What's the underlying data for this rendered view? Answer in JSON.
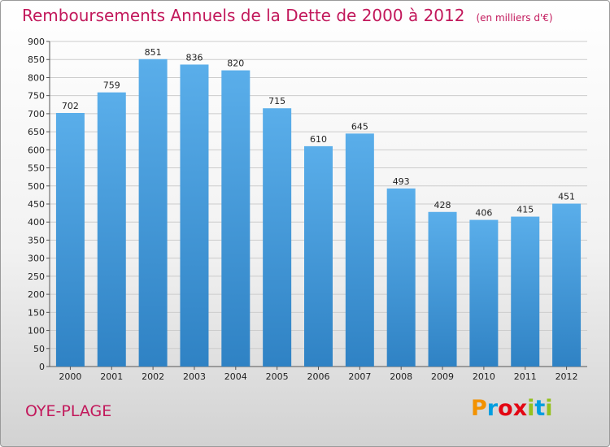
{
  "header": {
    "title": "Remboursements Annuels de la Dette de 2000 à 2012",
    "unit": "(en milliers d'€)"
  },
  "footer": {
    "commune": "OYE-PLAGE",
    "logo": {
      "letters": [
        "P",
        "r",
        "o",
        "x",
        "i",
        "t",
        "i"
      ],
      "colors": [
        "#f39200",
        "#009ee0",
        "#e30613",
        "#e30613",
        "#95c11f",
        "#009ee0",
        "#95c11f"
      ]
    }
  },
  "chart_data": {
    "type": "bar",
    "title": "Remboursements Annuels de la Dette de 2000 à 2012",
    "subtitle": "(en milliers d'€)",
    "xlabel": "",
    "ylabel": "",
    "categories": [
      "2000",
      "2001",
      "2002",
      "2003",
      "2004",
      "2005",
      "2006",
      "2007",
      "2008",
      "2009",
      "2010",
      "2011",
      "2012"
    ],
    "values": [
      702,
      759,
      851,
      836,
      820,
      715,
      610,
      645,
      493,
      428,
      406,
      415,
      451
    ],
    "ylim": [
      0,
      900
    ],
    "yticks": [
      0,
      50,
      100,
      150,
      200,
      250,
      300,
      350,
      400,
      450,
      500,
      550,
      600,
      650,
      700,
      750,
      800,
      850,
      900
    ],
    "grid": true,
    "bar_color": "#4a9fdc",
    "bar_color_light": "#5aaeea",
    "bar_color_dark": "#2f82c4",
    "grid_color": "#cccccc",
    "legend": "none"
  }
}
